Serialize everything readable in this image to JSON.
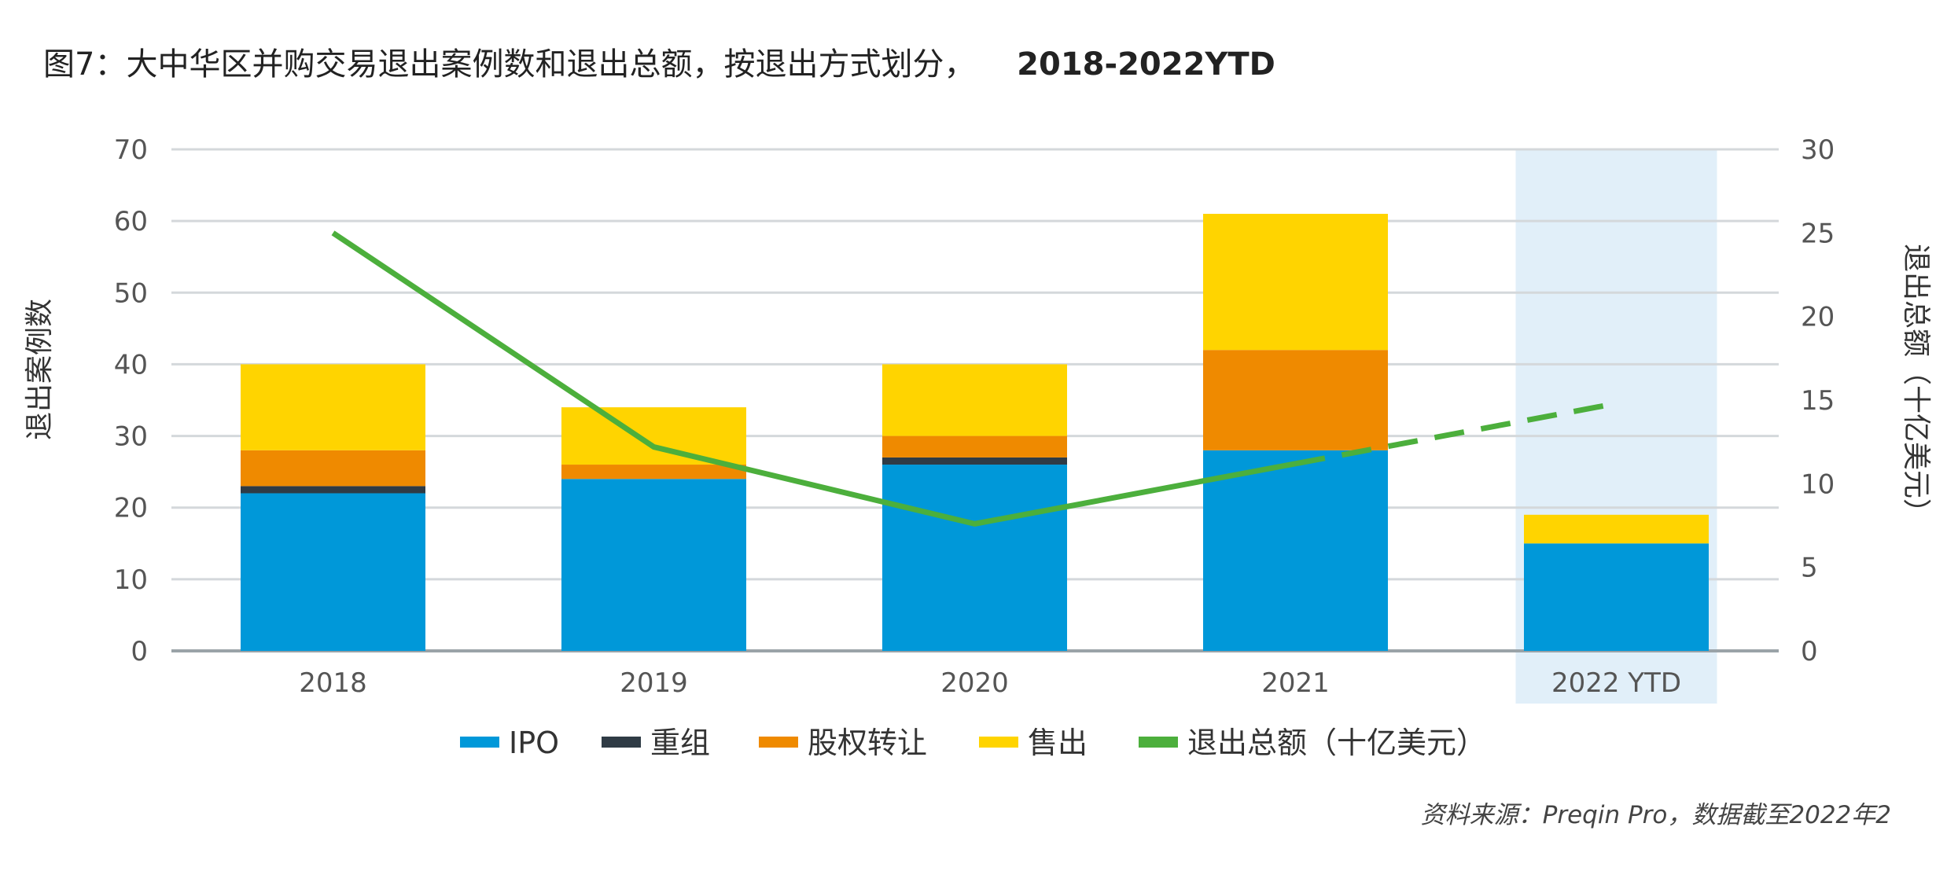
{
  "title": {
    "main": "图7：大中华区并购交易退出案例数和退出总额，按退出方式划分，",
    "years": "2018-2022YTD"
  },
  "source": "资料来源：Preqin Pro，数据截至2022年2",
  "chart_data": {
    "type": "bar",
    "stacked": true,
    "categories": [
      "2018",
      "2019",
      "2020",
      "2021",
      "2022 YTD"
    ],
    "highlight_category": "2022 YTD",
    "ylabel": "退出案例数",
    "y2label": "退出总额（十亿美元）",
    "ylim": [
      0,
      70
    ],
    "y2lim": [
      0,
      30
    ],
    "yticks": [
      0,
      10,
      20,
      30,
      40,
      50,
      60,
      70
    ],
    "y2ticks": [
      0,
      5,
      10,
      15,
      20,
      25,
      30
    ],
    "grid": true,
    "legend_position": "bottom",
    "series": [
      {
        "name": "IPO",
        "color": "#0098D9",
        "values": [
          22,
          24,
          26,
          28,
          15
        ]
      },
      {
        "name": "重组",
        "color": "#2F3B45",
        "values": [
          1,
          0,
          1,
          0,
          0
        ]
      },
      {
        "name": "股权转让",
        "color": "#EF8A00",
        "values": [
          5,
          2,
          3,
          14,
          0
        ]
      },
      {
        "name": "售出",
        "color": "#FFD400",
        "values": [
          12,
          8,
          10,
          19,
          4
        ]
      }
    ],
    "line": {
      "name": "退出总额（十亿美元）",
      "color": "#4CAF3C",
      "axis": "right",
      "values": [
        25,
        12.2,
        7.6,
        11.2,
        14.8
      ],
      "dashed_from_index": 3
    }
  }
}
